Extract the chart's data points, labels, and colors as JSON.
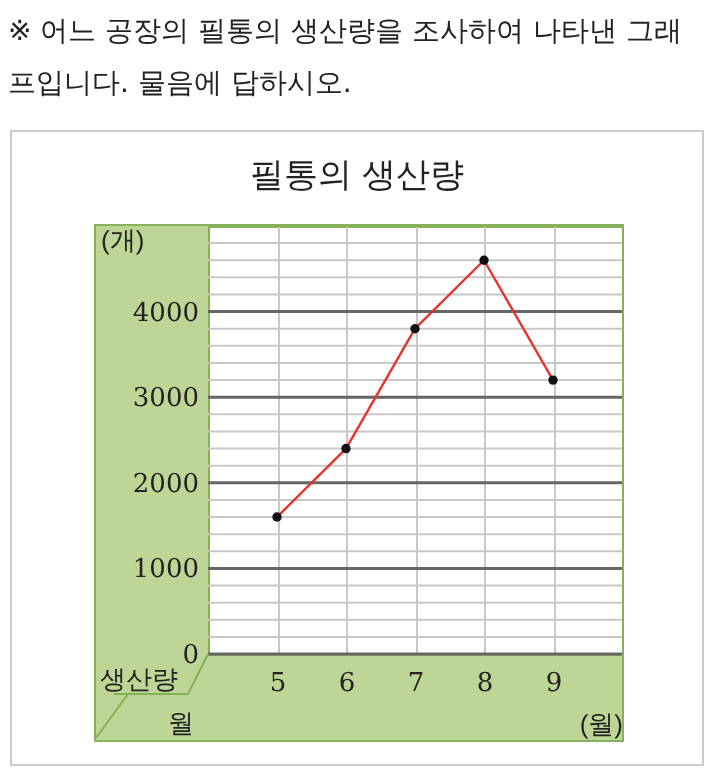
{
  "chart_data": {
    "type": "line",
    "title": "필통의 생산량",
    "xlabel": "(월)",
    "ylabel": "(개)",
    "annotations": [
      "※ 어느 공장의 필통의 생산량을 조사하여 나타낸 그래프입니다. 물음에 답하시오.",
      "생산량",
      "월"
    ],
    "x": [
      5,
      6,
      7,
      8,
      9
    ],
    "series": [
      {
        "color": "#e8322c",
        "values": [
          1600,
          2400,
          3800,
          4600,
          3200
        ]
      }
    ],
    "xlim": [
      4,
      10
    ],
    "xticks": [
      5,
      6,
      7,
      8,
      9
    ],
    "ylim": [
      0,
      5000
    ],
    "yticks": [
      0,
      {
        "value": 200,
        "label": null
      },
      {
        "value": 400,
        "label": null
      },
      {
        "value": 600,
        "label": null
      },
      {
        "value": 800,
        "label": null
      },
      1000,
      {
        "value": 1200,
        "label": null
      },
      {
        "value": 1400,
        "label": null
      },
      {
        "value": 1600,
        "label": null
      },
      {
        "value": 1800,
        "label": null
      },
      2000,
      {
        "value": 2200,
        "label": null
      },
      {
        "value": 2400,
        "label": null
      },
      {
        "value": 2600,
        "label": null
      },
      {
        "value": 2800,
        "label": null
      },
      3000,
      {
        "value": 3200,
        "label": null
      },
      {
        "value": 3400,
        "label": null
      },
      {
        "value": 3600,
        "label": null
      },
      {
        "value": 3800,
        "label": null
      },
      4000,
      {
        "value": 4200,
        "label": null
      },
      {
        "value": 4400,
        "label": null
      },
      {
        "value": 4600,
        "label": null
      },
      {
        "value": 4800,
        "label": null
      }
    ],
    "grid": true,
    "marker": "circle",
    "line_style": "solid"
  }
}
